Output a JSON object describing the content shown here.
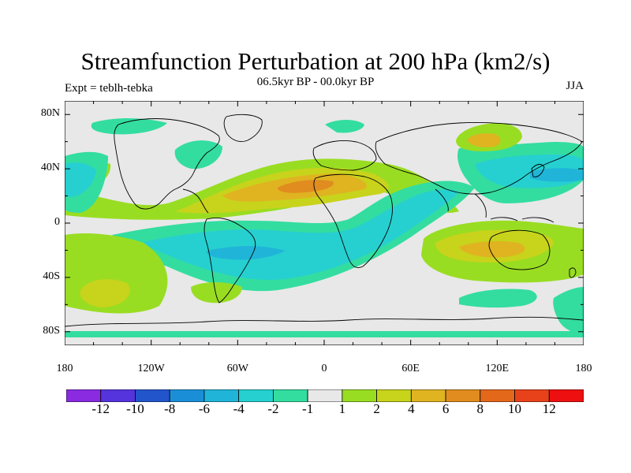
{
  "title": "Streamfunction Perturbation at 200 hPa (km2/s)",
  "left_label": "Expt = teblh-tebka",
  "center_label": "06.5kyr BP - 00.0kyr BP",
  "right_label": "JJA",
  "y_ticks": [
    {
      "label": "80N",
      "lat": 80
    },
    {
      "label": "40N",
      "lat": 40
    },
    {
      "label": "0",
      "lat": 0
    },
    {
      "label": "40S",
      "lat": -40
    },
    {
      "label": "80S",
      "lat": -80
    }
  ],
  "x_ticks": [
    {
      "label": "180",
      "lon": -180
    },
    {
      "label": "120W",
      "lon": -120
    },
    {
      "label": "60W",
      "lon": -60
    },
    {
      "label": "0",
      "lon": 0
    },
    {
      "label": "60E",
      "lon": 60
    },
    {
      "label": "120E",
      "lon": 120
    },
    {
      "label": "180",
      "lon": 180
    }
  ],
  "colorbar": {
    "colors": [
      "#8a2be2",
      "#5533dd",
      "#2255cc",
      "#1a8fd8",
      "#20b5d8",
      "#26d0d0",
      "#33dda0",
      "#e8e8e8",
      "#99dd22",
      "#c8d31c",
      "#e0b321",
      "#e08c1f",
      "#e4681a",
      "#e8421a",
      "#ee1010"
    ],
    "labels": [
      "-12",
      "-10",
      "-8",
      "-6",
      "-4",
      "-2",
      "-1",
      "1",
      "2",
      "4",
      "6",
      "8",
      "10",
      "12"
    ]
  },
  "chart_data": {
    "type": "contour_map",
    "title": "Streamfunction Perturbation at 200 hPa (km2/s)",
    "subtitle": "06.5kyr BP - 00.0kyr BP",
    "experiment": "Expt = teblh-tebka",
    "season": "JJA",
    "xlim": [
      -180,
      180
    ],
    "ylim": [
      -90,
      90
    ],
    "contour_levels": [
      -12,
      -10,
      -8,
      -6,
      -4,
      -2,
      -1,
      1,
      2,
      4,
      6,
      8,
      10,
      12
    ],
    "features": [
      {
        "name": "north_atlantic_north_africa_high",
        "lon": -20,
        "lat": 28,
        "level": 4,
        "sign": "positive"
      },
      {
        "name": "mediterranean_ridge",
        "lon": 10,
        "lat": 32,
        "level": 6,
        "sign": "positive"
      },
      {
        "name": "south_atlantic_low",
        "lon": -35,
        "lat": -20,
        "level": -4,
        "sign": "negative"
      },
      {
        "name": "west_pacific_low",
        "lon": 150,
        "lat": 30,
        "level": -4,
        "sign": "negative"
      },
      {
        "name": "australia_high",
        "lon": 125,
        "lat": -20,
        "level": 6,
        "sign": "positive"
      },
      {
        "name": "east_asia_high",
        "lon": 120,
        "lat": 58,
        "level": 6,
        "sign": "positive"
      },
      {
        "name": "south_pacific_high",
        "lon": -150,
        "lat": -50,
        "level": 4,
        "sign": "positive"
      }
    ]
  }
}
